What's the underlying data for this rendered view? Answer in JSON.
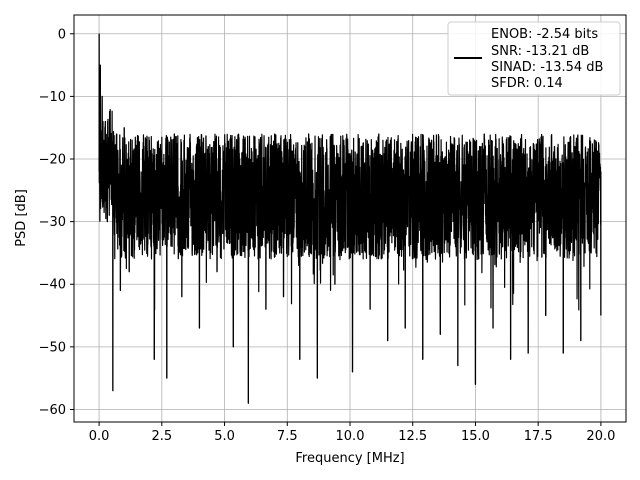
{
  "chart_data": {
    "type": "line",
    "xlabel": "Frequency [MHz]",
    "ylabel": "PSD [dB]",
    "xlim": [
      -1.0,
      21.0
    ],
    "ylim": [
      -62.0,
      3.0
    ],
    "x_ticks": [
      0.0,
      2.5,
      5.0,
      7.5,
      10.0,
      12.5,
      15.0,
      17.5,
      20.0
    ],
    "x_tick_labels": [
      "0.0",
      "2.5",
      "5.0",
      "7.5",
      "10.0",
      "12.5",
      "15.0",
      "17.5",
      "20.0"
    ],
    "y_ticks": [
      0,
      -10,
      -20,
      -30,
      -40,
      -50,
      -60
    ],
    "y_tick_labels": [
      "0",
      "−10",
      "−20",
      "−30",
      "−40",
      "−50",
      "−60"
    ],
    "grid": true,
    "legend_position": "top-right",
    "legend_lines": [
      "ENOB: -2.54 bits",
      "SNR: -13.21 dB",
      "SINAD: -13.54 dB",
      "SFDR: 0.14"
    ],
    "series": [
      {
        "color": "#000000",
        "x": [
          0.0,
          0.02,
          0.05,
          0.08,
          0.12,
          0.18,
          0.25,
          0.33,
          0.45,
          0.55,
          0.7,
          0.85,
          1.0,
          1.2,
          1.45,
          1.7,
          2.0,
          2.2,
          2.45,
          2.7,
          3.0,
          3.3,
          3.65,
          4.0,
          4.35,
          4.7,
          5.0,
          5.35,
          5.65,
          5.95,
          6.3,
          6.65,
          7.0,
          7.35,
          7.7,
          8.0,
          8.35,
          8.7,
          9.05,
          9.4,
          9.75,
          10.1,
          10.45,
          10.8,
          11.15,
          11.5,
          11.85,
          12.2,
          12.55,
          12.9,
          13.25,
          13.6,
          13.95,
          14.3,
          14.65,
          15.0,
          15.35,
          15.7,
          16.05,
          16.4,
          16.75,
          17.1,
          17.45,
          17.8,
          18.15,
          18.5,
          18.85,
          19.2,
          19.55,
          20.0
        ],
        "values": [
          0,
          -12,
          -5,
          -20,
          -10,
          -27,
          -14,
          -30,
          -22,
          -57,
          -16,
          -41,
          -15,
          -38,
          -20,
          -33,
          -17,
          -52,
          -21,
          -55,
          -16,
          -42,
          -24,
          -47,
          -18,
          -38,
          -21,
          -50,
          -25,
          -59,
          -20,
          -44,
          -16,
          -42,
          -22,
          -52,
          -16,
          -55,
          -19,
          -40,
          -17,
          -54,
          -18,
          -44,
          -16,
          -49,
          -19,
          -47,
          -20,
          -52,
          -17,
          -48,
          -19,
          -53,
          -21,
          -56,
          -16,
          -47,
          -21,
          -52,
          -18,
          -51,
          -20,
          -45,
          -18,
          -51,
          -19,
          -49,
          -17,
          -45
        ]
      }
    ]
  }
}
